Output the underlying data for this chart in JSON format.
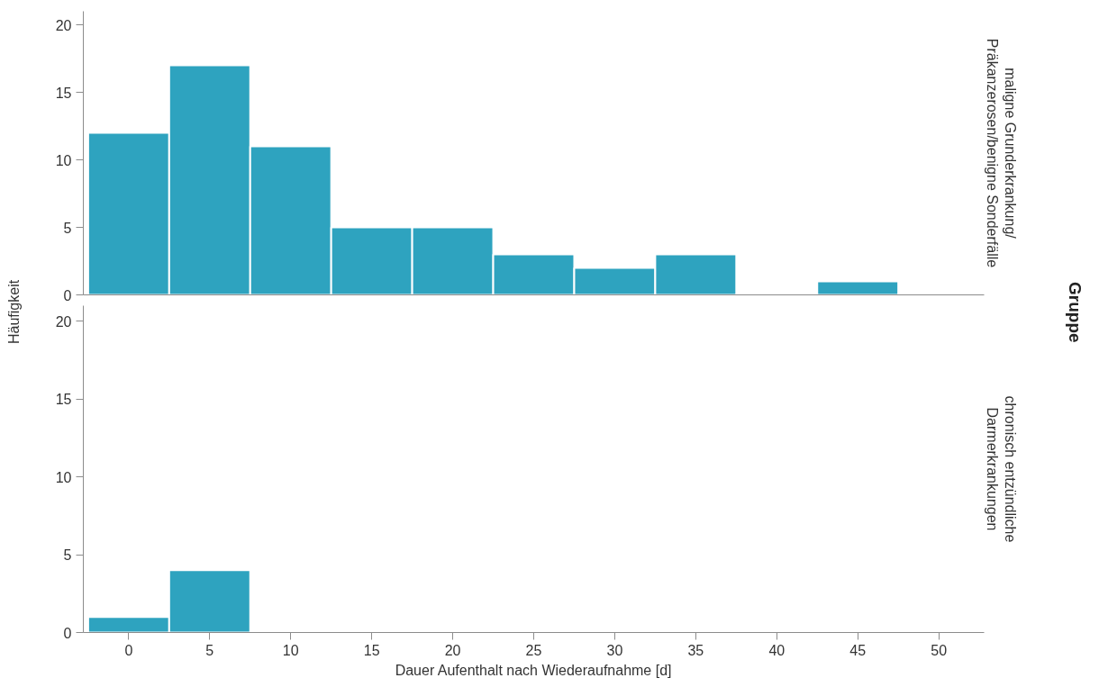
{
  "chart_data": [
    {
      "type": "histogram",
      "ylabel": "Häufigkeit",
      "subtitle": "maligne Grunderkrankung/ Präkanzerosen/benigne Sonderfälle",
      "legend_title": "Gruppe",
      "bins": [
        -2.5,
        2.5,
        7.5,
        12.5,
        17.5,
        22.5,
        27.5,
        32.5,
        37.5,
        42.5,
        47.5
      ],
      "values": [
        12,
        17,
        11,
        5,
        5,
        3,
        2,
        3,
        0,
        1
      ],
      "color": "#2ea3bf",
      "xlim": [
        -2.8,
        52.8
      ],
      "xticks": [
        0,
        5,
        10,
        15,
        20,
        25,
        30,
        35,
        40,
        45,
        50
      ],
      "ylim": [
        0,
        21
      ],
      "yticks": [
        0,
        5,
        10,
        15,
        20
      ],
      "tick_labels": "y",
      "grid": false
    },
    {
      "type": "histogram",
      "xlabel": "Dauer Aufenthalt nach Wiederaufnahme [d]",
      "subtitle": "chronisch entzündliche Darmerkrankungen",
      "bins": [
        -2.5,
        2.5,
        7.5
      ],
      "values": [
        1,
        4
      ],
      "color": "#2ea3bf",
      "xlim": [
        -2.8,
        52.8
      ],
      "xticks": [
        0,
        5,
        10,
        15,
        20,
        25,
        30,
        35,
        40,
        45,
        50
      ],
      "ylim": [
        0,
        21
      ],
      "yticks": [
        0,
        5,
        10,
        15,
        20
      ],
      "grid": false
    }
  ]
}
